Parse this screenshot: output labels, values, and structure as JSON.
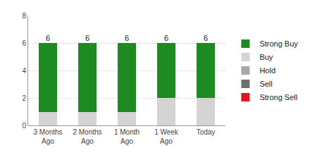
{
  "chart_data": {
    "type": "bar",
    "stacked": true,
    "categories": [
      "3 Months Ago",
      "2 Months Ago",
      "1 Month Ago",
      "1 Week Ago",
      "Today"
    ],
    "series": [
      {
        "name": "Strong Buy",
        "color": "#1e8a22",
        "values": [
          5,
          5,
          5,
          4,
          4
        ]
      },
      {
        "name": "Buy",
        "color": "#d4d4d4",
        "values": [
          1,
          1,
          1,
          2,
          2
        ]
      },
      {
        "name": "Hold",
        "color": "#a8a8a8",
        "values": [
          0,
          0,
          0,
          0,
          0
        ]
      },
      {
        "name": "Sell",
        "color": "#6f6f6f",
        "values": [
          0,
          0,
          0,
          0,
          0
        ]
      },
      {
        "name": "Strong Sell",
        "color": "#e0141b",
        "values": [
          0,
          0,
          0,
          0,
          0
        ]
      }
    ],
    "totals": [
      6,
      6,
      6,
      6,
      6
    ],
    "ylim": [
      0,
      8
    ],
    "yticks": [
      0,
      2,
      4,
      6,
      8
    ],
    "grid": true,
    "legend": "right"
  }
}
